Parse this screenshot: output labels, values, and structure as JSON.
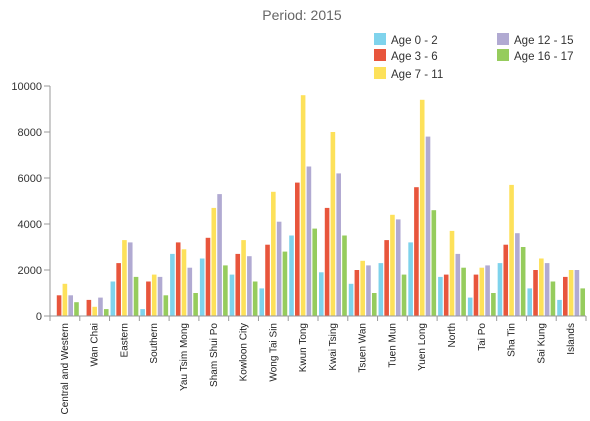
{
  "chart_data": {
    "type": "bar",
    "title": "Period: 2015",
    "xlabel": "",
    "ylabel": "",
    "ylim": [
      0,
      10000
    ],
    "yticks": [
      "0",
      "2000",
      "4000",
      "6000",
      "8000",
      "10000"
    ],
    "grid": false,
    "legend_position": "top-right",
    "categories": [
      "Central and Western",
      "Wan Chai",
      "Eastern",
      "Southern",
      "Yau Tsim Mong",
      "Sham Shui Po",
      "Kowloon City",
      "Wong Tai Sin",
      "Kwun Tong",
      "Kwai Tsing",
      "Tsuen Wan",
      "Tuen Mun",
      "Yuen Long",
      "North",
      "Tai Po",
      "Sha Tin",
      "Sai Kung",
      "Islands"
    ],
    "series": [
      {
        "name": "Age 0 - 2",
        "color": "#7fd3ec",
        "values": [
          0,
          0,
          1500,
          300,
          2700,
          2500,
          1800,
          1200,
          3500,
          1900,
          1400,
          2300,
          3200,
          1700,
          800,
          2300,
          1200,
          700
        ]
      },
      {
        "name": "Age 3 - 6",
        "color": "#e8553c",
        "values": [
          900,
          700,
          2300,
          1500,
          3200,
          3400,
          2700,
          3100,
          5800,
          4700,
          2000,
          3300,
          5600,
          1800,
          1800,
          3100,
          2000,
          1700
        ]
      },
      {
        "name": "Age 7 - 11",
        "color": "#fde15a",
        "values": [
          1400,
          400,
          3300,
          1800,
          2900,
          4700,
          3300,
          5400,
          9600,
          8000,
          2400,
          4400,
          9400,
          3700,
          2100,
          5700,
          2500,
          2000
        ]
      },
      {
        "name": "Age 12 - 15",
        "color": "#b1aad2",
        "values": [
          900,
          800,
          3200,
          1700,
          2100,
          5300,
          2600,
          4100,
          6500,
          6200,
          2200,
          4200,
          7800,
          2700,
          2200,
          3600,
          2300,
          2000
        ]
      },
      {
        "name": "Age 16 - 17",
        "color": "#96cc5d",
        "values": [
          600,
          300,
          1700,
          900,
          1000,
          2200,
          1500,
          2800,
          3800,
          3500,
          1000,
          1800,
          4600,
          2100,
          1000,
          3000,
          1500,
          1200
        ]
      }
    ]
  }
}
